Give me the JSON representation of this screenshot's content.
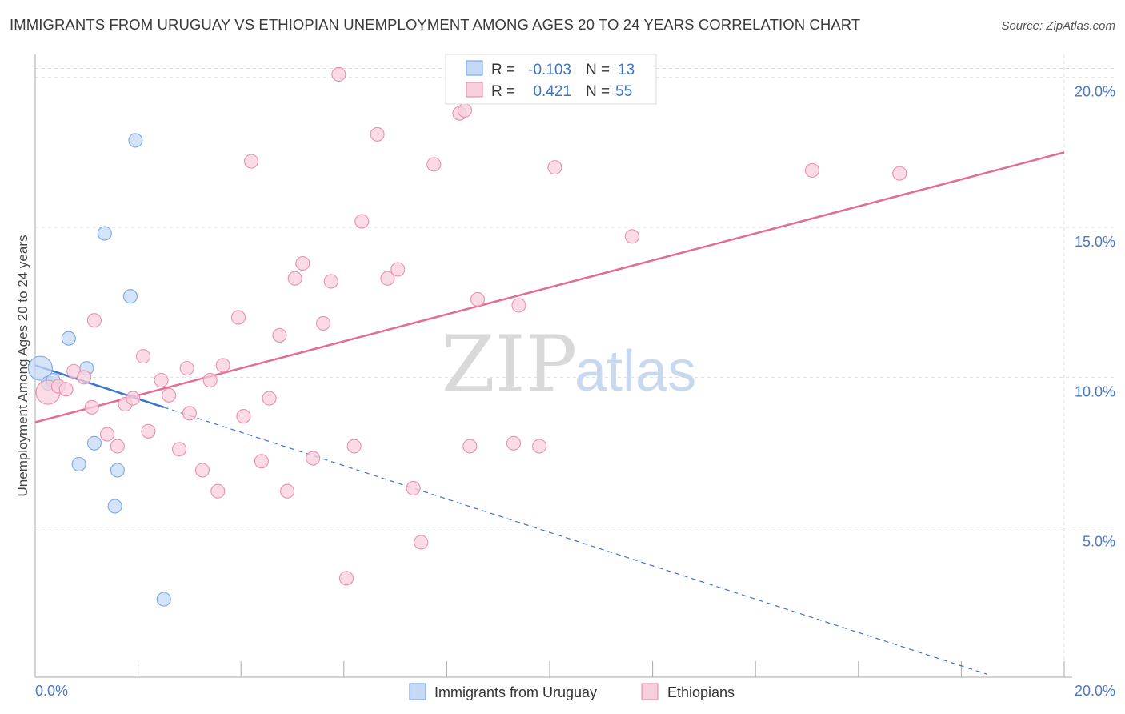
{
  "title": "IMMIGRANTS FROM URUGUAY VS ETHIOPIAN UNEMPLOYMENT AMONG AGES 20 TO 24 YEARS CORRELATION CHART",
  "source": "Source: ZipAtlas.com",
  "watermark": {
    "zip": "ZIP",
    "atlas": "atlas"
  },
  "colors": {
    "uruguay": "#7aa7e6",
    "uruguay_fill": "#c5d9f5",
    "uruguay_line": "#3a73d0",
    "ethiopians": "#ec8fb0",
    "ethiopians_fill": "#f8cfdd",
    "ethiopians_line": "#e36b95",
    "tick_text": "#4a78c4",
    "grid": "#dddddd"
  },
  "stats": [
    {
      "r_label": "R =",
      "r_value": "-0.103",
      "n_label": "N =",
      "n_value": "13"
    },
    {
      "r_label": "R =",
      "r_value": "0.421",
      "n_label": "N =",
      "n_value": "55"
    }
  ],
  "chart_data": {
    "type": "scatter",
    "title": "IMMIGRANTS FROM URUGUAY VS ETHIOPIAN UNEMPLOYMENT AMONG AGES 20 TO 24 YEARS CORRELATION CHART",
    "xlabel": "",
    "ylabel": "Unemployment Among Ages 20 to 24 years",
    "xlim": [
      0,
      20
    ],
    "ylim": [
      0,
      20.5
    ],
    "x_tick_labels": [
      "0.0%",
      "20.0%"
    ],
    "y_ticks": [
      5,
      10,
      15,
      20
    ],
    "y_tick_labels": [
      "5.0%",
      "10.0%",
      "15.0%",
      "20.0%"
    ],
    "grid": true,
    "legend_position": "bottom",
    "series": [
      {
        "name": "Immigrants from Uruguay",
        "r": -0.103,
        "n": 13,
        "points": [
          [
            0.1,
            10.3,
            "large"
          ],
          [
            0.25,
            9.8
          ],
          [
            0.35,
            9.9
          ],
          [
            0.65,
            11.3
          ],
          [
            1.0,
            10.3
          ],
          [
            1.35,
            14.8
          ],
          [
            1.95,
            17.9
          ],
          [
            1.85,
            12.7
          ],
          [
            1.15,
            7.8
          ],
          [
            0.85,
            7.1
          ],
          [
            1.6,
            6.9
          ],
          [
            1.55,
            5.7
          ],
          [
            2.5,
            2.6
          ]
        ],
        "trend_solid": [
          [
            0,
            10.4
          ],
          [
            2.5,
            9.0
          ]
        ],
        "trend_dashed": [
          [
            2.5,
            9.0
          ],
          [
            18.5,
            0.1
          ]
        ]
      },
      {
        "name": "Ethiopians",
        "r": 0.421,
        "n": 55,
        "points": [
          [
            0.25,
            9.5,
            "large"
          ],
          [
            0.45,
            9.7
          ],
          [
            0.6,
            9.6
          ],
          [
            0.75,
            10.2
          ],
          [
            0.95,
            10.0
          ],
          [
            1.1,
            9.0
          ],
          [
            1.15,
            11.9
          ],
          [
            1.4,
            8.1
          ],
          [
            1.6,
            7.7
          ],
          [
            1.75,
            9.1
          ],
          [
            1.9,
            9.3
          ],
          [
            2.1,
            10.7
          ],
          [
            2.2,
            8.2
          ],
          [
            2.45,
            9.9
          ],
          [
            2.6,
            9.4
          ],
          [
            2.8,
            7.6
          ],
          [
            2.95,
            10.3
          ],
          [
            3.0,
            8.8
          ],
          [
            3.25,
            6.9
          ],
          [
            3.4,
            9.9
          ],
          [
            3.55,
            6.2
          ],
          [
            3.65,
            10.4
          ],
          [
            3.95,
            12.0
          ],
          [
            4.2,
            17.2
          ],
          [
            4.05,
            8.7
          ],
          [
            4.4,
            7.2
          ],
          [
            4.55,
            9.3
          ],
          [
            4.75,
            11.4
          ],
          [
            4.9,
            6.2
          ],
          [
            5.05,
            13.3
          ],
          [
            5.2,
            13.8
          ],
          [
            5.4,
            7.3
          ],
          [
            5.6,
            11.8
          ],
          [
            5.75,
            13.2
          ],
          [
            5.9,
            20.1
          ],
          [
            6.05,
            3.3
          ],
          [
            6.2,
            7.7
          ],
          [
            6.35,
            15.2
          ],
          [
            6.65,
            18.1
          ],
          [
            6.85,
            13.3
          ],
          [
            7.05,
            13.6
          ],
          [
            7.35,
            6.3
          ],
          [
            7.5,
            4.5
          ],
          [
            7.75,
            17.1
          ],
          [
            8.25,
            18.8
          ],
          [
            8.45,
            7.7
          ],
          [
            8.6,
            12.6
          ],
          [
            9.3,
            7.8
          ],
          [
            9.4,
            12.4
          ],
          [
            9.8,
            7.7
          ],
          [
            10.1,
            17.0
          ],
          [
            11.6,
            14.7
          ],
          [
            15.1,
            16.9
          ],
          [
            16.8,
            16.8
          ],
          [
            8.35,
            18.9
          ]
        ],
        "trend_solid": [
          [
            0,
            8.5
          ],
          [
            20,
            17.5
          ]
        ]
      }
    ]
  }
}
